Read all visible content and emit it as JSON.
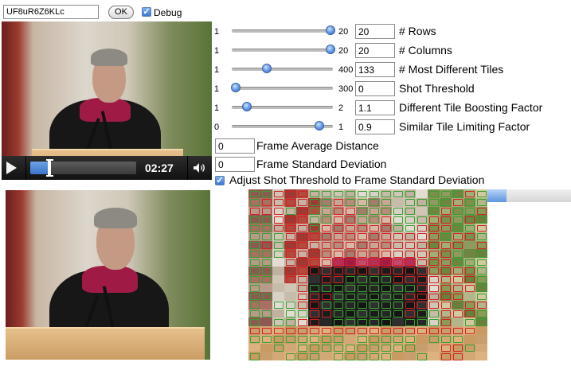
{
  "toolbar": {
    "video_id_value": "UF8uR6Z6KLc",
    "ok_label": "OK",
    "debug_label": "Debug",
    "debug_checked": true
  },
  "player": {
    "time": "02:27",
    "progress": 0.18,
    "play_icon": "play-icon",
    "volume_icon": "volume-icon"
  },
  "sliders": [
    {
      "min": "1",
      "max": "20",
      "value": "20",
      "position": 0.98,
      "label": "# Rows"
    },
    {
      "min": "1",
      "max": "20",
      "value": "20",
      "position": 0.98,
      "label": "# Columns"
    },
    {
      "min": "1",
      "max": "400",
      "value": "133",
      "position": 0.35,
      "label": "# Most Different Tiles"
    },
    {
      "min": "1",
      "max": "300",
      "value": "0",
      "position": 0.04,
      "label": "Shot Threshold"
    },
    {
      "min": "1",
      "max": "2",
      "value": "1.1",
      "position": 0.15,
      "label": "Different Tile Boosting Factor"
    },
    {
      "min": "0",
      "max": "1",
      "value": "0.9",
      "position": 0.87,
      "label": "Similar Tile Limiting Factor"
    }
  ],
  "frame_average": {
    "value": "0",
    "label": "Frame Average Distance"
  },
  "frame_std": {
    "value": "0",
    "label": "Frame Standard Deviation"
  },
  "adjust": {
    "label": "Adjust Shot Threshold to Frame Standard Deviation",
    "checked": true
  },
  "analysis_progress": 0.23,
  "colors": {
    "different_tile": "#d42020",
    "similar_tile": "#38a02e",
    "slider_thumb": "#3d74d0"
  }
}
